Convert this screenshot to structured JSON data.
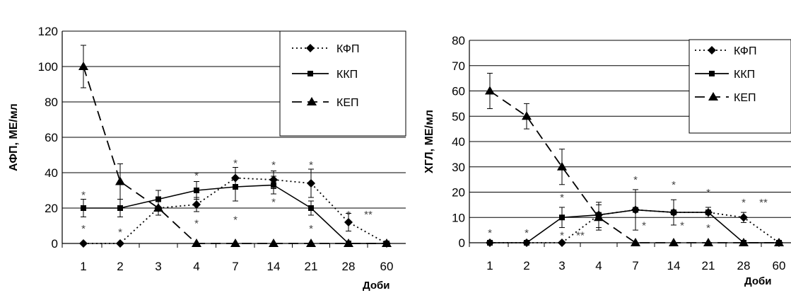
{
  "chart_data": [
    {
      "type": "line",
      "ylabel": "АФП, МЕ/мл",
      "xlabel": "Доби",
      "categories": [
        "1",
        "2",
        "3",
        "4",
        "7",
        "14",
        "21",
        "28",
        "60"
      ],
      "ylim": [
        0,
        120
      ],
      "yticks": [
        "0",
        "20",
        "40",
        "60",
        "80",
        "100",
        "120"
      ],
      "grid": true,
      "legend_position": "top-right",
      "series": [
        {
          "name": "КФП",
          "marker": "diamond",
          "style": "dotted",
          "values": [
            0,
            0,
            20,
            22,
            37,
            36,
            34,
            12,
            0
          ],
          "errors": [
            0,
            0,
            0,
            4,
            6,
            5,
            8,
            5,
            0
          ]
        },
        {
          "name": "ККП",
          "marker": "square",
          "style": "solid",
          "values": [
            20,
            20,
            25,
            30,
            32,
            33,
            20,
            0,
            0
          ],
          "errors": [
            5,
            5,
            5,
            5,
            8,
            5,
            4,
            0,
            0
          ]
        },
        {
          "name": "КЕП",
          "marker": "triangle",
          "style": "dashed",
          "values": [
            100,
            35,
            20,
            0,
            0,
            0,
            0,
            0,
            0
          ],
          "errors": [
            12,
            10,
            4,
            0,
            0,
            0,
            0,
            0,
            0
          ]
        }
      ],
      "annotations": [
        {
          "x": "1",
          "y": 29,
          "text": "*"
        },
        {
          "x": "1",
          "y": 10,
          "text": "*"
        },
        {
          "x": "2",
          "y": 8,
          "text": "*"
        },
        {
          "x": "4",
          "y": 40,
          "text": "*"
        },
        {
          "x": "4",
          "y": 13,
          "text": "*"
        },
        {
          "x": "7",
          "y": 47,
          "text": "*"
        },
        {
          "x": "7",
          "y": 15,
          "text": "*"
        },
        {
          "x": "14",
          "y": 46,
          "text": "*"
        },
        {
          "x": "14",
          "y": 25,
          "text": "*"
        },
        {
          "x": "21",
          "y": 46,
          "text": "*"
        },
        {
          "x": "21",
          "y": 10,
          "text": "*"
        },
        {
          "x": "28",
          "y": 18,
          "text": "*"
        },
        {
          "x": "28",
          "y": 18,
          "text": "**",
          "dx": 28
        }
      ]
    },
    {
      "type": "line",
      "ylabel": "ХГЛ, МЕ/мл",
      "xlabel": "Доби",
      "categories": [
        "1",
        "2",
        "3",
        "4",
        "7",
        "14",
        "21",
        "28",
        "60"
      ],
      "ylim": [
        0,
        80
      ],
      "yticks": [
        "0",
        "10",
        "20",
        "30",
        "40",
        "50",
        "60",
        "70",
        "80"
      ],
      "grid": true,
      "legend_position": "top-right",
      "series": [
        {
          "name": "КФП",
          "marker": "diamond",
          "style": "dotted",
          "values": [
            0,
            0,
            0,
            11,
            13,
            12,
            12,
            10,
            0
          ],
          "errors": [
            0,
            0,
            0,
            0,
            0,
            0,
            0,
            2,
            0
          ]
        },
        {
          "name": "ККП",
          "marker": "square",
          "style": "solid",
          "values": [
            0,
            0,
            10,
            11,
            13,
            12,
            12,
            0,
            0
          ],
          "errors": [
            0,
            0,
            4,
            5,
            8,
            5,
            2,
            0,
            0
          ]
        },
        {
          "name": "КЕП",
          "marker": "triangle",
          "style": "dashed",
          "values": [
            60,
            50,
            30,
            10,
            0,
            0,
            0,
            0,
            0
          ],
          "errors": [
            7,
            5,
            7,
            5,
            0,
            0,
            0,
            0,
            0
          ]
        }
      ],
      "annotations": [
        {
          "x": "1",
          "y": 5,
          "text": "*"
        },
        {
          "x": "2",
          "y": 5,
          "text": "*"
        },
        {
          "x": "3",
          "y": 19,
          "text": "*"
        },
        {
          "x": "3",
          "y": 4,
          "text": "*"
        },
        {
          "x": "3",
          "y": 4,
          "text": "**",
          "dx": 26
        },
        {
          "x": "7",
          "y": 26,
          "text": "*"
        },
        {
          "x": "7",
          "y": 8,
          "text": "*",
          "dx": 12
        },
        {
          "x": "14",
          "y": 24,
          "text": "*"
        },
        {
          "x": "14",
          "y": 8,
          "text": "*",
          "dx": 12
        },
        {
          "x": "21",
          "y": 21,
          "text": "*"
        },
        {
          "x": "21",
          "y": 7,
          "text": "*"
        },
        {
          "x": "28",
          "y": 17,
          "text": "*"
        },
        {
          "x": "28",
          "y": 17,
          "text": "**",
          "dx": 28
        }
      ]
    }
  ]
}
